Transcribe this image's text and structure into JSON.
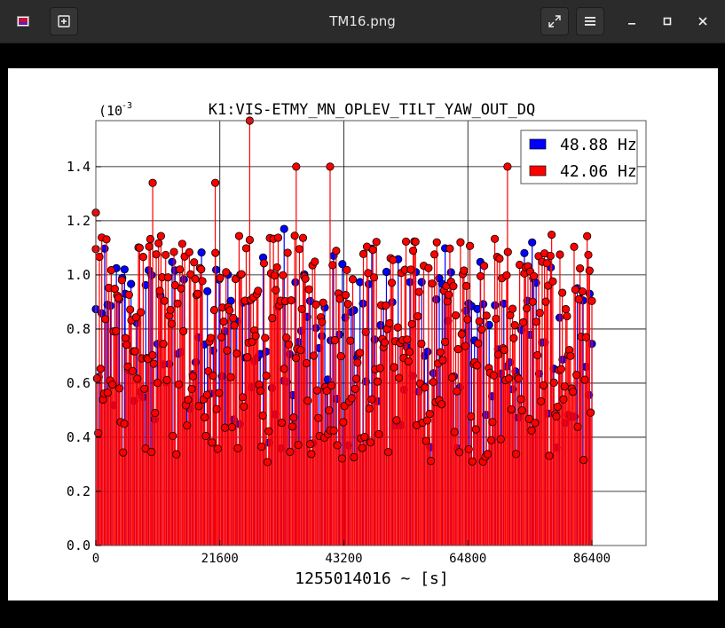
{
  "window": {
    "title": "TM16.png"
  },
  "chart_data": {
    "type": "scatter",
    "title": "K1:VIS-ETMY_MN_OPLEV_TILT_YAW_OUT_DQ",
    "xlabel": "1255014016 ~ [s]",
    "ylabel": "",
    "y_multiplier": "(10",
    "y_multiplier_exp": "-3",
    "xlim": [
      0,
      86400
    ],
    "ylim": [
      0,
      1.57
    ],
    "x_ticks": [
      "0",
      "21600",
      "43200",
      "64800",
      "86400"
    ],
    "y_ticks": [
      "0.0",
      "0.2",
      "0.4",
      "0.6",
      "0.8",
      "1.0",
      "1.2",
      "1.4"
    ],
    "grid": true,
    "legend_position": "top-right",
    "series": [
      {
        "name": "48.88 Hz",
        "color": "#0000ff",
        "values_range_approx": [
          0.2,
          1.18
        ]
      },
      {
        "name": "42.06 Hz",
        "color": "#ff0000",
        "values_range_approx": [
          0.3,
          1.57
        ]
      }
    ],
    "notable_points_red": [
      {
        "x": 26800,
        "y": 1.57
      },
      {
        "x": 34900,
        "y": 1.4
      },
      {
        "x": 40800,
        "y": 1.4
      },
      {
        "x": 71700,
        "y": 1.4
      },
      {
        "x": 9900,
        "y": 1.34
      },
      {
        "x": 20800,
        "y": 1.34
      },
      {
        "x": 0,
        "y": 1.23
      }
    ],
    "notable_points_blue": [
      {
        "x": 32800,
        "y": 1.17
      },
      {
        "x": 5000,
        "y": 1.02
      },
      {
        "x": 76000,
        "y": 1.12
      },
      {
        "x": 86000,
        "y": 0.93
      }
    ]
  }
}
